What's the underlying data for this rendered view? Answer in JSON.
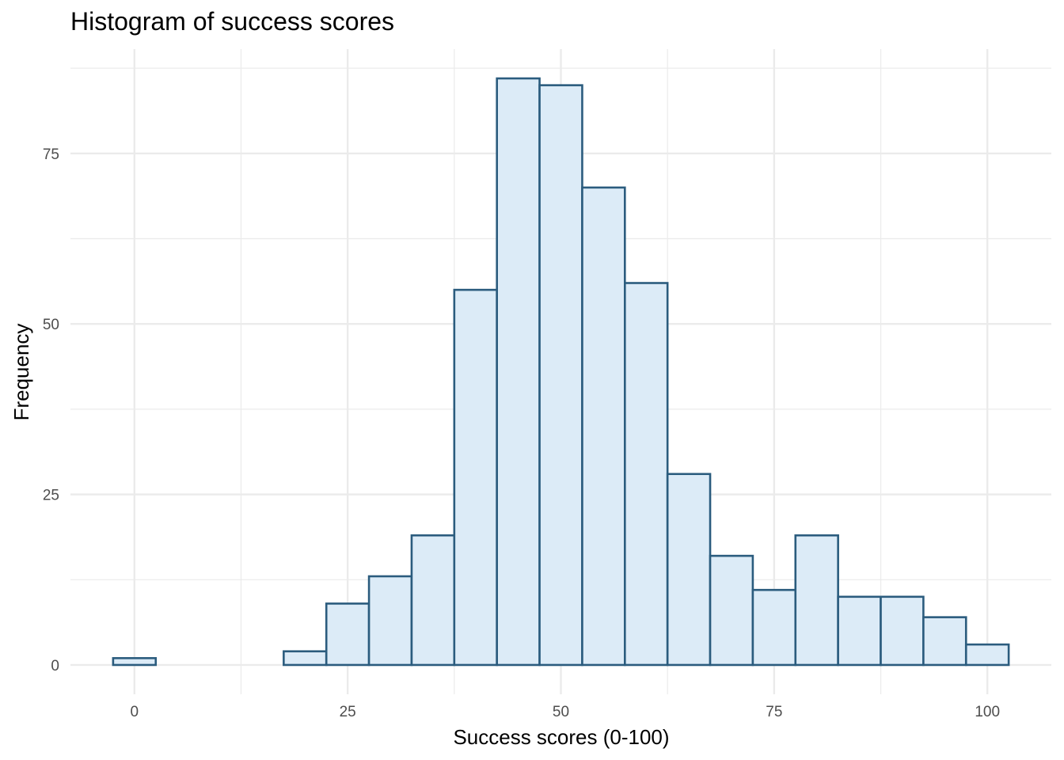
{
  "chart_data": {
    "type": "bar",
    "title": "Histogram of success scores",
    "xlabel": "Success scores (0-100)",
    "ylabel": "Frequency",
    "bin_width": 5,
    "bin_centers": [
      0,
      5,
      10,
      15,
      20,
      25,
      30,
      35,
      40,
      45,
      50,
      55,
      60,
      65,
      70,
      75,
      80,
      85,
      90,
      95,
      100
    ],
    "values": [
      1,
      0,
      0,
      0,
      2,
      9,
      13,
      19,
      55,
      86,
      85,
      70,
      56,
      28,
      16,
      11,
      19,
      10,
      10,
      7,
      3
    ],
    "xlim": [
      -7.5,
      107.5
    ],
    "ylim": [
      -4.3,
      90.3
    ],
    "x_ticks": [
      0,
      25,
      50,
      75,
      100
    ],
    "y_ticks": [
      0,
      25,
      50,
      75
    ],
    "grid": true,
    "fill_color": "#dcebf7",
    "outline_color": "#2b5c7e",
    "grid_color": "#ebebeb"
  }
}
